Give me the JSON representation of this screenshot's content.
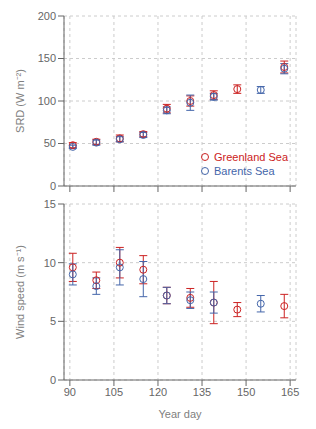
{
  "chart_data": [
    {
      "type": "scatter",
      "y_label": "SRD (W m⁻²)",
      "xlim": [
        88,
        167
      ],
      "xticks": [
        90,
        105,
        120,
        135,
        150,
        165
      ],
      "ylim": [
        0,
        200
      ],
      "yticks": [
        0,
        50,
        100,
        150,
        200
      ],
      "grid": true,
      "legend": "lower right",
      "tick_labels": "y",
      "marker": "circle",
      "series": [
        {
          "name": "Greenland Sea",
          "color": "#cc2222",
          "x": [
            91,
            99,
            107,
            115,
            123,
            131,
            139,
            147,
            155,
            163
          ],
          "values": [
            48,
            52,
            56,
            61,
            91,
            100,
            107,
            114,
            null,
            140
          ],
          "error": [
            3,
            3,
            4,
            3,
            5,
            6,
            5,
            5,
            null,
            7
          ]
        },
        {
          "name": "Barents Sea",
          "color": "#4466aa",
          "x": [
            91,
            99,
            107,
            115,
            123,
            131,
            139,
            147,
            155,
            163
          ],
          "values": [
            46,
            51,
            55,
            60,
            89,
            98,
            105,
            null,
            113,
            138
          ],
          "error": [
            2,
            3,
            3,
            3,
            4,
            9,
            4,
            null,
            4,
            6
          ]
        }
      ]
    },
    {
      "type": "scatter",
      "y_label": "Wind speed (m s⁻¹)",
      "x_label": "Year day",
      "xlim": [
        88,
        167
      ],
      "xticks": [
        90,
        105,
        120,
        135,
        150,
        165
      ],
      "ylim": [
        0,
        15
      ],
      "yticks": [
        0,
        5,
        10,
        15
      ],
      "grid": true,
      "marker": "circle",
      "series": [
        {
          "color": "#cc2222",
          "x": [
            91,
            99,
            107,
            115,
            123,
            131,
            139,
            147,
            155,
            163
          ],
          "values": [
            9.6,
            8.5,
            10.0,
            9.4,
            7.2,
            7.0,
            6.6,
            6.0,
            null,
            6.3
          ],
          "error": [
            1.2,
            0.7,
            1.3,
            1.2,
            0.7,
            0.8,
            1.8,
            0.6,
            null,
            1.0
          ]
        },
        {
          "color": "#4466aa",
          "x": [
            91,
            99,
            107,
            115,
            123,
            131,
            139,
            147,
            155,
            163
          ],
          "values": [
            9.0,
            8.0,
            9.6,
            8.6,
            7.2,
            6.8,
            6.6,
            null,
            6.5,
            null
          ],
          "error": [
            0.9,
            0.7,
            1.5,
            1.5,
            0.7,
            0.7,
            0.9,
            null,
            0.7,
            null
          ]
        }
      ]
    }
  ]
}
